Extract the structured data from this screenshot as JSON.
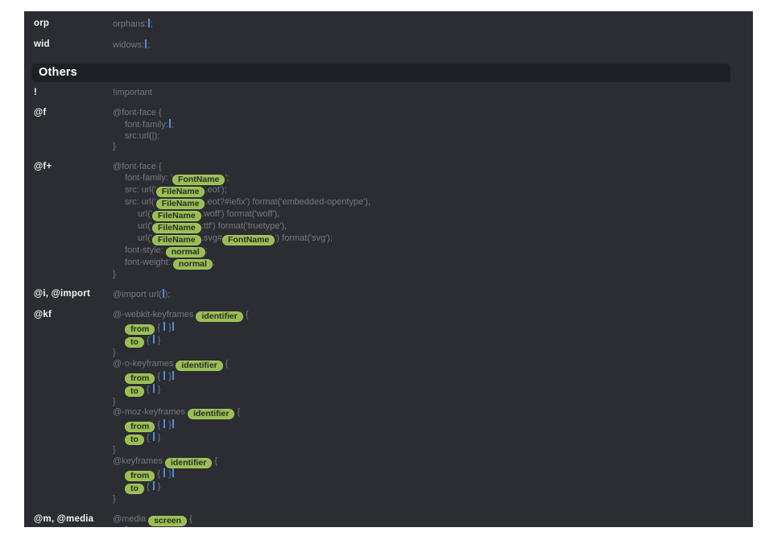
{
  "colors": {
    "page_bg": "#ffffff",
    "panel_bg": "#2b2d33",
    "section_header_bg": "#1e2025",
    "abbr_text": "#f2f3f5",
    "code_text": "#75797f",
    "cursor": "#4a8fe2",
    "pill_bg": "#9abf4f",
    "pill_text": "#2b2d33",
    "section_header_text": "#ffffff"
  },
  "section_header": {
    "label": "Others"
  },
  "rows_top": [
    {
      "abbr": "orp",
      "lines": [
        {
          "indent": 0,
          "segments": [
            {
              "k": "code",
              "v": "orphans:"
            },
            {
              "k": "cursor"
            },
            {
              "k": "code",
              "v": ";"
            }
          ]
        }
      ]
    },
    {
      "abbr": "wid",
      "lines": [
        {
          "indent": 0,
          "segments": [
            {
              "k": "code",
              "v": "widows:"
            },
            {
              "k": "cursor"
            },
            {
              "k": "code",
              "v": ";"
            }
          ]
        }
      ]
    }
  ],
  "rows_others": [
    {
      "abbr": "!",
      "lines": [
        {
          "indent": 0,
          "segments": [
            {
              "k": "code",
              "v": "!important"
            }
          ]
        }
      ]
    },
    {
      "abbr": "@f",
      "lines": [
        {
          "indent": 0,
          "segments": [
            {
              "k": "code",
              "v": "@font-face {"
            }
          ]
        },
        {
          "indent": 1,
          "segments": [
            {
              "k": "code",
              "v": "font-family:"
            },
            {
              "k": "cursor"
            },
            {
              "k": "code",
              "v": ";"
            }
          ]
        },
        {
          "indent": 1,
          "segments": [
            {
              "k": "code",
              "v": "src:url(|);"
            }
          ]
        },
        {
          "indent": 0,
          "segments": [
            {
              "k": "code",
              "v": "}"
            }
          ]
        }
      ]
    },
    {
      "abbr": "@f+",
      "lines": [
        {
          "indent": 0,
          "segments": [
            {
              "k": "code",
              "v": "@font-face {"
            }
          ]
        },
        {
          "indent": 1,
          "segments": [
            {
              "k": "code",
              "v": "font-family: '"
            },
            {
              "k": "pill",
              "v": "FontName"
            },
            {
              "k": "code",
              "v": "';"
            }
          ]
        },
        {
          "indent": 1,
          "segments": [
            {
              "k": "code",
              "v": "src: url('"
            },
            {
              "k": "pill",
              "v": "FileName"
            },
            {
              "k": "code",
              "v": ".eot');"
            }
          ]
        },
        {
          "indent": 1,
          "segments": [
            {
              "k": "code",
              "v": "src: url('"
            },
            {
              "k": "pill",
              "v": "FileName"
            },
            {
              "k": "code",
              "v": ".eot?#iefix') format('embedded-opentype'),"
            }
          ]
        },
        {
          "indent": 2,
          "segments": [
            {
              "k": "code",
              "v": "url('"
            },
            {
              "k": "pill",
              "v": "FileName"
            },
            {
              "k": "code",
              "v": ".woff') format('woff'),"
            }
          ]
        },
        {
          "indent": 2,
          "segments": [
            {
              "k": "code",
              "v": "url('"
            },
            {
              "k": "pill",
              "v": "FileName"
            },
            {
              "k": "code",
              "v": ".ttf') format('truetype'),"
            }
          ]
        },
        {
          "indent": 2,
          "segments": [
            {
              "k": "code",
              "v": "url('"
            },
            {
              "k": "pill",
              "v": "FileName"
            },
            {
              "k": "code",
              "v": ".svg#"
            },
            {
              "k": "pill",
              "v": "FontName"
            },
            {
              "k": "code",
              "v": "') format('svg');"
            }
          ]
        },
        {
          "indent": 1,
          "segments": [
            {
              "k": "code",
              "v": "font-style: "
            },
            {
              "k": "pill",
              "v": "normal"
            },
            {
              "k": "code",
              "v": ";"
            }
          ]
        },
        {
          "indent": 1,
          "segments": [
            {
              "k": "code",
              "v": "font-weight: "
            },
            {
              "k": "pill",
              "v": "normal"
            },
            {
              "k": "code",
              "v": ";"
            }
          ]
        },
        {
          "indent": 0,
          "segments": [
            {
              "k": "code",
              "v": "}"
            }
          ]
        }
      ]
    },
    {
      "abbr": "@i, @import",
      "lines": [
        {
          "indent": 0,
          "segments": [
            {
              "k": "code",
              "v": "@import url("
            },
            {
              "k": "cursor"
            },
            {
              "k": "code",
              "v": ");"
            }
          ]
        }
      ]
    },
    {
      "abbr": "@kf",
      "lines": [
        {
          "indent": 0,
          "segments": [
            {
              "k": "code",
              "v": "@-webkit-keyframes "
            },
            {
              "k": "pill",
              "v": "identifier"
            },
            {
              "k": "code",
              "v": " {"
            }
          ]
        },
        {
          "indent": 1,
          "segments": [
            {
              "k": "pill",
              "v": "from"
            },
            {
              "k": "code",
              "v": " { "
            },
            {
              "k": "cursor"
            },
            {
              "k": "code",
              "v": " }"
            },
            {
              "k": "cursor"
            }
          ]
        },
        {
          "indent": 1,
          "segments": [
            {
              "k": "pill",
              "v": "to"
            },
            {
              "k": "code",
              "v": " { "
            },
            {
              "k": "cursor"
            },
            {
              "k": "code",
              "v": " }"
            }
          ]
        },
        {
          "indent": 0,
          "segments": [
            {
              "k": "code",
              "v": "}"
            }
          ]
        },
        {
          "indent": 0,
          "segments": [
            {
              "k": "code",
              "v": "@-o-keyframes "
            },
            {
              "k": "pill",
              "v": "identifier"
            },
            {
              "k": "code",
              "v": " {"
            }
          ]
        },
        {
          "indent": 1,
          "segments": [
            {
              "k": "pill",
              "v": "from"
            },
            {
              "k": "code",
              "v": " { "
            },
            {
              "k": "cursor"
            },
            {
              "k": "code",
              "v": " }"
            },
            {
              "k": "cursor"
            }
          ]
        },
        {
          "indent": 1,
          "segments": [
            {
              "k": "pill",
              "v": "to"
            },
            {
              "k": "code",
              "v": " { "
            },
            {
              "k": "cursor"
            },
            {
              "k": "code",
              "v": " }"
            }
          ]
        },
        {
          "indent": 0,
          "segments": [
            {
              "k": "code",
              "v": "}"
            }
          ]
        },
        {
          "indent": 0,
          "segments": [
            {
              "k": "code",
              "v": "@-moz-keyframes "
            },
            {
              "k": "pill",
              "v": "identifier"
            },
            {
              "k": "code",
              "v": " {"
            }
          ]
        },
        {
          "indent": 1,
          "segments": [
            {
              "k": "pill",
              "v": "from"
            },
            {
              "k": "code",
              "v": " { "
            },
            {
              "k": "cursor"
            },
            {
              "k": "code",
              "v": " }"
            },
            {
              "k": "cursor"
            }
          ]
        },
        {
          "indent": 1,
          "segments": [
            {
              "k": "pill",
              "v": "to"
            },
            {
              "k": "code",
              "v": " { "
            },
            {
              "k": "cursor"
            },
            {
              "k": "code",
              "v": " }"
            }
          ]
        },
        {
          "indent": 0,
          "segments": [
            {
              "k": "code",
              "v": "}"
            }
          ]
        },
        {
          "indent": 0,
          "segments": [
            {
              "k": "code",
              "v": "@keyframes "
            },
            {
              "k": "pill",
              "v": "identifier"
            },
            {
              "k": "code",
              "v": " {"
            }
          ]
        },
        {
          "indent": 1,
          "segments": [
            {
              "k": "pill",
              "v": "from"
            },
            {
              "k": "code",
              "v": " { "
            },
            {
              "k": "cursor"
            },
            {
              "k": "code",
              "v": " }"
            },
            {
              "k": "cursor"
            }
          ]
        },
        {
          "indent": 1,
          "segments": [
            {
              "k": "pill",
              "v": "to"
            },
            {
              "k": "code",
              "v": " { "
            },
            {
              "k": "cursor"
            },
            {
              "k": "code",
              "v": " }"
            }
          ]
        },
        {
          "indent": 0,
          "segments": [
            {
              "k": "code",
              "v": "}"
            }
          ]
        }
      ]
    },
    {
      "abbr": "@m, @media",
      "lines": [
        {
          "indent": 0,
          "segments": [
            {
              "k": "code",
              "v": "@media "
            },
            {
              "k": "pill",
              "v": "screen"
            },
            {
              "k": "code",
              "v": " {"
            }
          ]
        },
        {
          "indent": 1,
          "segments": [
            {
              "k": "cursor"
            }
          ]
        },
        {
          "indent": 0,
          "segments": [
            {
              "k": "code",
              "v": "}"
            }
          ]
        }
      ]
    }
  ]
}
